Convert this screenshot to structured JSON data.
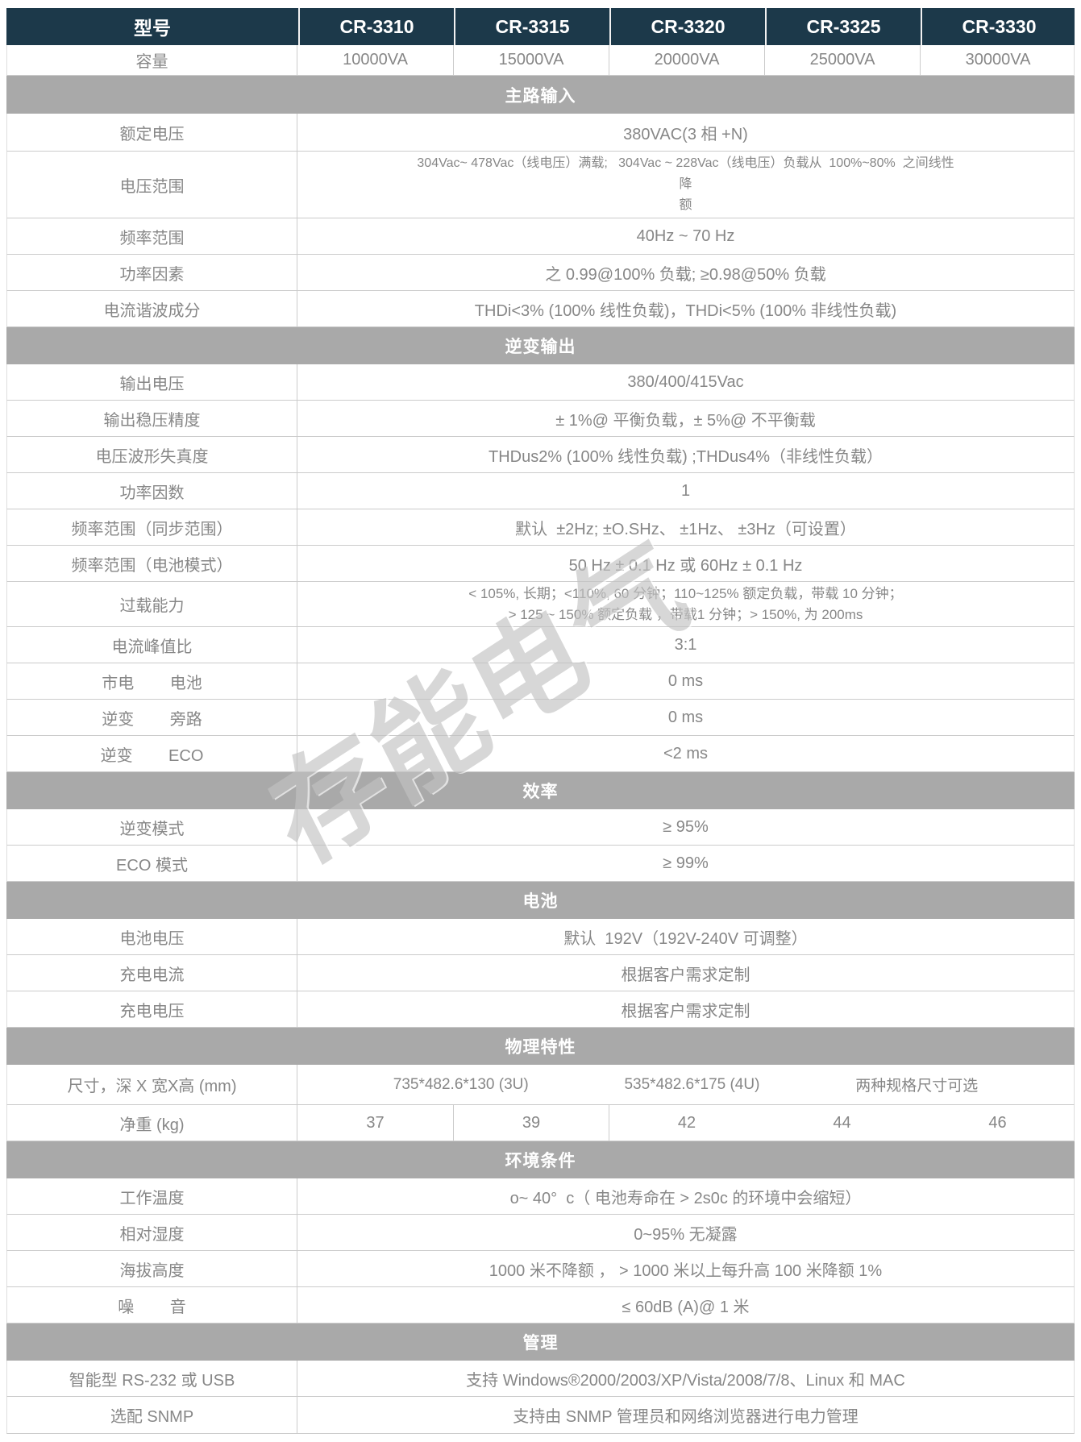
{
  "watermark": "存能电气",
  "colors": {
    "header_bg": "#1c394a",
    "section_bg": "#a9a9a9",
    "body_text": "#878787",
    "border": "#cbcbcb"
  },
  "rows": {
    "models": {
      "label": "型号",
      "cells": [
        "CR-3310",
        "CR-3315",
        "CR-3320",
        "CR-3325",
        "CR-3330"
      ]
    },
    "capacity": {
      "label": "容量",
      "cells": [
        "10000VA",
        "15000VA",
        "20000VA",
        "25000VA",
        "30000VA"
      ]
    },
    "sec_main_input": {
      "title": "主路输入"
    },
    "rated_voltage": {
      "label": "额定电压",
      "value": "380VAC(3 相 +N)"
    },
    "voltage_range": {
      "label": "电压范围",
      "lines": [
        "304Vac~ 478Vac（线电压）满载;   304Vac ~ 228Vac（线电压）负载从  100%~80%  之间线性",
        "降",
        "额"
      ]
    },
    "freq_range": {
      "label": "频率范围",
      "value": "40Hz ~ 70 Hz"
    },
    "power_factor_in": {
      "label": "功率因素",
      "value": "之 0.99@100% 负载; ≥0.98@50% 负载"
    },
    "thdi": {
      "label": "电流谐波成分",
      "value": "THDi<3% (100% 线性负载)，THDi<5% (100% 非线性负载)"
    },
    "sec_inverter_output": {
      "title": "逆变输出"
    },
    "output_voltage": {
      "label": "输出电压",
      "value": "380/400/415Vac"
    },
    "output_regulation": {
      "label": "输出稳压精度",
      "value": "± 1%@ 平衡负载，± 5%@ 不平衡载"
    },
    "thdu": {
      "label": "电压波形失真度",
      "value": "THDus2% (100% 线性负载) ;THDus4%（非线性负载）"
    },
    "power_factor_out": {
      "label": "功率因数",
      "value": "1"
    },
    "freq_sync": {
      "label": "频率范围（同步范围）",
      "value": "默认  ±2Hz; ±O.SHz、 ±1Hz、 ±3Hz（可设置）"
    },
    "freq_battery": {
      "label": "频率范围（电池模式）",
      "value": "50 Hz ± 0.1 Hz 或 60Hz ± 0.1 Hz"
    },
    "overload": {
      "label": "过载能力",
      "lines": [
        "< 105%, 长期；<110%, 60 分钟；110~125% 额定负载，带载 10 分钟；",
        "> 125 ~ 150% 额定负载 ，带载1 分钟；> 150%, 为 200ms"
      ]
    },
    "crest_factor": {
      "label": "电流峰值比",
      "value": "3:1"
    },
    "transfer_mains_battery": {
      "label": "市电        电池",
      "value": "0 ms"
    },
    "transfer_inverter_bypass": {
      "label": "逆变        旁路",
      "value": "0 ms"
    },
    "transfer_inverter_eco": {
      "label": "逆变        ECO",
      "value": "<2 ms"
    },
    "sec_efficiency": {
      "title": "效率"
    },
    "eff_inverter": {
      "label": "逆变模式",
      "value": "≥ 95%"
    },
    "eff_eco": {
      "label": "ECO 模式",
      "value": "≥ 99%"
    },
    "sec_battery": {
      "title": "电池"
    },
    "battery_voltage": {
      "label": "电池电压",
      "value": "默认  192V（192V-240V 可调整）"
    },
    "charge_current": {
      "label": "充电电流",
      "value": "根据客户需求定制"
    },
    "charge_voltage": {
      "label": "充电电压",
      "value": "根据客户需求定制"
    },
    "sec_physical": {
      "title": "物理特性"
    },
    "dimensions": {
      "label": "尺寸，深 X 宽X高 (mm)",
      "cells": [
        "735*482.6*130 (3U)",
        "535*482.6*175 (4U)",
        "两种规格尺寸可选"
      ]
    },
    "weight": {
      "label": "净重 (kg)",
      "cells": [
        "37",
        "39",
        "42",
        "44",
        "46"
      ]
    },
    "sec_environment": {
      "title": "环境条件"
    },
    "op_temperature": {
      "label": "工作温度",
      "value": "o~ 40°  c（ 电池寿命在 > 2s0c 的环境中会缩短）"
    },
    "humidity": {
      "label": "相对湿度",
      "value": "0~95% 无凝露"
    },
    "altitude": {
      "label": "海拔高度",
      "value": "1000 米不降额 ， > 1000 米以上每升高 100 米降额 1%"
    },
    "noise": {
      "label": "噪        音",
      "value": "≤ 60dB (A)@ 1 米"
    },
    "sec_management": {
      "title": "管理"
    },
    "smart_interface": {
      "label": "智能型 RS-232 或 USB",
      "value": "支持 Windows®2000/2003/XP/Vista/2008/7/8、Linux 和 MAC"
    },
    "snmp": {
      "label": "选配 SNMP",
      "value": "支持由 SNMP 管理员和网络浏览器进行电力管理"
    }
  }
}
